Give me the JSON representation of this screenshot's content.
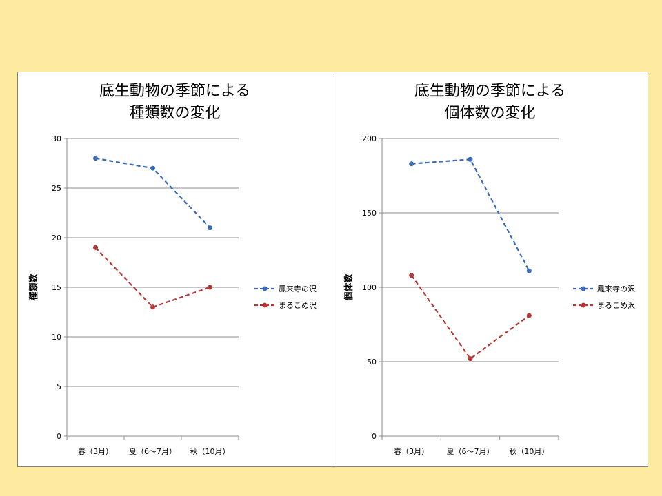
{
  "chart_data": [
    {
      "type": "line",
      "title_lines": [
        "底生動物の季節による",
        "種類数の変化"
      ],
      "ylabel": "種類数",
      "xlabel": "",
      "categories": [
        "春（3月）",
        "夏（6〜7月）",
        "秋（10月）"
      ],
      "yticks": [
        0,
        5,
        10,
        15,
        20,
        25,
        30
      ],
      "ylim": [
        0,
        30
      ],
      "grid": true,
      "legend_position": "right",
      "series": [
        {
          "name": "鳳来寺の沢",
          "values": [
            28,
            27,
            21
          ],
          "color": "#3A6DB5"
        },
        {
          "name": "まるこめ沢",
          "values": [
            19,
            13,
            15
          ],
          "color": "#B33A36"
        }
      ]
    },
    {
      "type": "line",
      "title_lines": [
        "底生動物の季節による",
        "個体数の変化"
      ],
      "ylabel": "個体数",
      "xlabel": "",
      "categories": [
        "春（3月）",
        "夏（6〜7月）",
        "秋（10月）"
      ],
      "yticks": [
        0,
        50,
        100,
        150,
        200
      ],
      "ylim": [
        0,
        200
      ],
      "grid": true,
      "legend_position": "right",
      "series": [
        {
          "name": "鳳来寺の沢",
          "values": [
            183,
            186,
            111
          ],
          "color": "#3A6DB5"
        },
        {
          "name": "まるこめ沢",
          "values": [
            108,
            52,
            81
          ],
          "color": "#B33A36"
        }
      ]
    }
  ]
}
